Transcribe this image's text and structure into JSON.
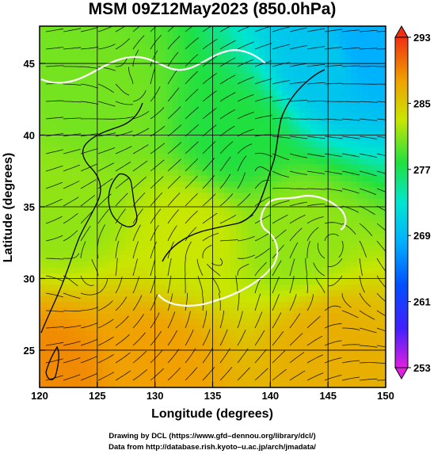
{
  "chart_data": {
    "type": "heatmap",
    "title": "MSM 09Z12May2023 (850.0hPa)",
    "xlabel": "Longitude (degrees)",
    "ylabel": "Latitude  (degrees)",
    "xlim": [
      120,
      150
    ],
    "ylim": [
      22.4,
      47.6
    ],
    "x_ticks": [
      120,
      125,
      130,
      135,
      140,
      145,
      150
    ],
    "x_tick_labels": [
      "120",
      "125",
      "130",
      "135",
      "140",
      "145",
      "150"
    ],
    "y_ticks": [
      25,
      30,
      35,
      40,
      45
    ],
    "y_tick_labels": [
      "25",
      "30",
      "35",
      "40",
      "45"
    ],
    "grid": true,
    "colorbar": {
      "min": 253,
      "max": 293,
      "ticks": [
        253,
        261,
        269,
        277,
        285,
        293
      ],
      "tick_labels": [
        "253",
        "261",
        "269",
        "277",
        "285",
        "293"
      ],
      "position": "right"
    },
    "field_samples": [
      {
        "lon": 121,
        "lat": 23.5,
        "value": 289
      },
      {
        "lon": 130,
        "lat": 24,
        "value": 288
      },
      {
        "lon": 145,
        "lat": 25,
        "value": 287
      },
      {
        "lon": 122,
        "lat": 35,
        "value": 281
      },
      {
        "lon": 133,
        "lat": 33,
        "value": 283
      },
      {
        "lon": 142,
        "lat": 33,
        "value": 281
      },
      {
        "lon": 125,
        "lat": 42,
        "value": 280
      },
      {
        "lon": 137,
        "lat": 40,
        "value": 277
      },
      {
        "lon": 145,
        "lat": 45,
        "value": 270
      },
      {
        "lon": 148,
        "lat": 46,
        "value": 268
      }
    ],
    "overlays": [
      "streamlines",
      "white contour line",
      "coastlines"
    ]
  },
  "credits": {
    "line1": "Drawing by DCL (https://www.gfd–dennou.org/library/dcl/)",
    "line2": "Data from http://database.rish.kyoto–u.ac.jp/arch/jmadata/"
  },
  "colors": {
    "warm": "#ee8a10",
    "mid": "#c8e600",
    "cool": "#28e83c",
    "cold": "#10e6d8",
    "white_contour": "#ffffff"
  }
}
